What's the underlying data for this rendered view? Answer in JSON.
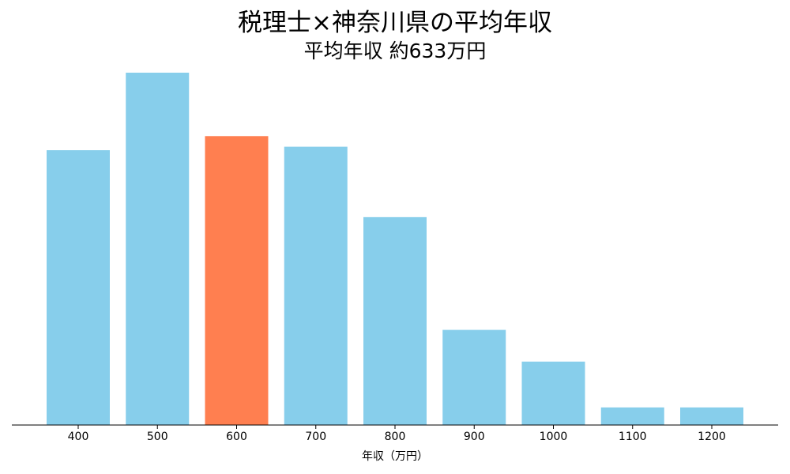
{
  "chart_data": {
    "type": "bar",
    "title": "税理士×神奈川県の平均年収",
    "subtitle": "平均年収 約633万円",
    "xlabel": "年収（万円）",
    "ylabel": "",
    "categories": [
      "400",
      "500",
      "600",
      "700",
      "800",
      "900",
      "1000",
      "1100",
      "1200"
    ],
    "values": [
      78,
      100,
      82,
      79,
      59,
      27,
      18,
      5,
      5
    ],
    "highlight_category": "600",
    "ylim": [
      0,
      100
    ],
    "grid": false,
    "legend": "none",
    "colors": {
      "bar": "#87ceeb",
      "highlight": "#ff7f50",
      "axis": "#000000"
    }
  }
}
